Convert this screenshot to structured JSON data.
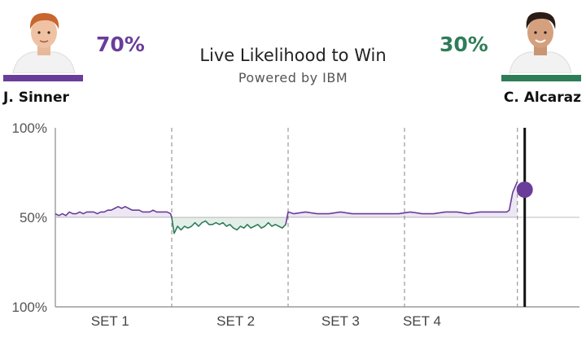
{
  "header": {
    "title": "Live Likelihood to Win",
    "subtitle": "Powered by IBM"
  },
  "players": {
    "left": {
      "name": "J. Sinner",
      "pct": "70%",
      "color": "#6a3d9a",
      "photo": "player-photo"
    },
    "right": {
      "name": "C. Alcaraz",
      "pct": "30%",
      "color": "#2e7d58",
      "photo": "player-photo"
    }
  },
  "chart_data": {
    "type": "line",
    "title": "Live Likelihood to Win",
    "ylim": [
      0,
      100
    ],
    "y_tick_labels": [
      "100%",
      "50%",
      "100%"
    ],
    "x_tick_labels": [
      "SET 1",
      "SET 2",
      "SET 3",
      "SET 4"
    ],
    "set_boundaries": [
      1,
      2,
      3,
      3.97
    ],
    "current_point": 3.97,
    "current_value": 70,
    "series": [
      {
        "x": [
          0,
          0.03,
          0.06,
          0.09,
          0.12,
          0.15,
          0.18,
          0.21,
          0.24,
          0.27,
          0.3,
          0.33,
          0.36,
          0.39,
          0.42,
          0.45,
          0.48,
          0.51,
          0.54,
          0.57,
          0.6,
          0.63,
          0.66,
          0.69,
          0.72,
          0.75,
          0.78,
          0.81,
          0.84,
          0.87,
          0.9,
          0.93,
          0.96,
          0.99,
          1.0,
          1.02,
          1.05,
          1.08,
          1.11,
          1.14,
          1.17,
          1.2,
          1.23,
          1.26,
          1.29,
          1.32,
          1.35,
          1.38,
          1.41,
          1.44,
          1.47,
          1.5,
          1.53,
          1.56,
          1.59,
          1.62,
          1.65,
          1.68,
          1.71,
          1.74,
          1.77,
          1.8,
          1.83,
          1.86,
          1.89,
          1.92,
          1.95,
          1.98,
          2.0,
          2.05,
          2.15,
          2.25,
          2.35,
          2.45,
          2.55,
          2.65,
          2.75,
          2.85,
          2.95,
          3.05,
          3.15,
          3.25,
          3.35,
          3.45,
          3.55,
          3.65,
          3.72,
          3.8,
          3.88,
          3.9,
          3.93,
          3.97
        ],
        "values": [
          52,
          51,
          52,
          51,
          53,
          52,
          52,
          53,
          52,
          53,
          53,
          53,
          52,
          53,
          53,
          54,
          54,
          55,
          56,
          55,
          56,
          55,
          54,
          54,
          54,
          53,
          53,
          53,
          54,
          53,
          53,
          53,
          53,
          52,
          50,
          41,
          45,
          43,
          45,
          44,
          45,
          47,
          45,
          47,
          48,
          46,
          46,
          47,
          46,
          47,
          45,
          46,
          44,
          43,
          45,
          44,
          46,
          44,
          45,
          46,
          44,
          45,
          47,
          45,
          46,
          45,
          44,
          46,
          53,
          52,
          53,
          52,
          52,
          53,
          52,
          52,
          52,
          52,
          52,
          53,
          52,
          52,
          53,
          53,
          52,
          53,
          53,
          53,
          53,
          54,
          64,
          70
        ]
      }
    ]
  }
}
